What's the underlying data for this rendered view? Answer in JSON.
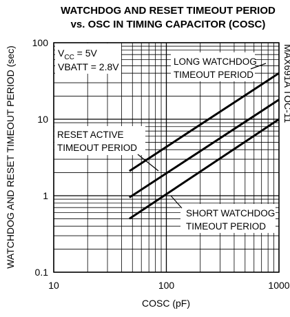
{
  "chart_data": {
    "type": "line",
    "title": [
      "WATCHDOG AND RESET TIMEOUT PERIOD",
      "vs. OSC IN TIMING CAPACITOR (COSC)"
    ],
    "x_label": "COSC (pF)",
    "y_label": "WATCHDOG AND RESET TIMEOUT PERIOD (sec)",
    "side_note": "MAX691A TOC-11",
    "conditions": [
      {
        "main": "V",
        "sub": "CC",
        "rest": " = 5V"
      },
      "VBATT = 2.8V"
    ],
    "annotations": [
      [
        "LONG WATCHDOG",
        "TIMEOUT PERIOD"
      ],
      [
        "RESET ACTIVE",
        "TIMEOUT PERIOD"
      ],
      [
        "SHORT WATCHDOG",
        "TIMEOUT PERIOD"
      ]
    ],
    "x": [
      47,
      1000
    ],
    "series": [
      {
        "name": "LONG WATCHDOG TIMEOUT PERIOD",
        "color": "#000000",
        "values": [
          2.1,
          40
        ]
      },
      {
        "name": "RESET ACTIVE TIMEOUT PERIOD",
        "color": "#000000",
        "values": [
          0.95,
          18
        ]
      },
      {
        "name": "SHORT WATCHDOG TIMEOUT PERIOD",
        "color": "#000000",
        "values": [
          0.5,
          10
        ]
      }
    ],
    "xlim": [
      10,
      1000
    ],
    "ylim": [
      0.1,
      100
    ],
    "xticks": [
      10,
      100,
      1000
    ],
    "yticks": [
      0.1,
      1,
      10,
      100
    ],
    "xscale": "log",
    "yscale": "log",
    "grid": true,
    "minor_grid": true
  }
}
